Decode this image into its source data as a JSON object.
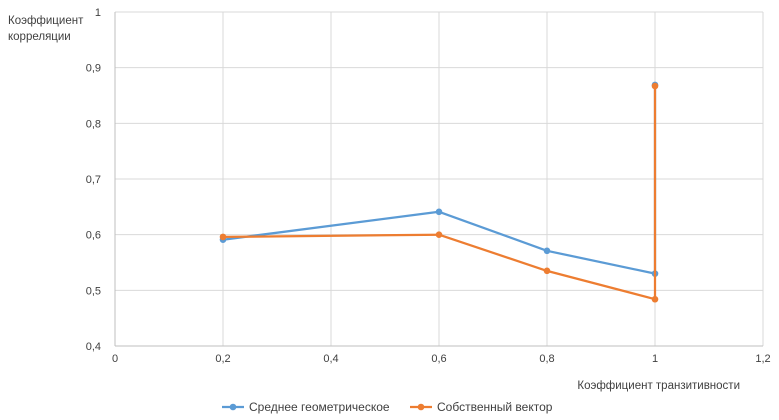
{
  "chart_data": {
    "type": "scatter",
    "xlabel": "Коэффициент транзитивности",
    "ylabel_lines": [
      "Коэффициент",
      "корреляции"
    ],
    "xlim": [
      0,
      1.2
    ],
    "ylim": [
      0.4,
      1.0
    ],
    "x_ticks": [
      0,
      0.2,
      0.4,
      0.6,
      0.8,
      1.0,
      1.2
    ],
    "x_tick_labels": [
      "0",
      "0,2",
      "0,4",
      "0,6",
      "0,8",
      "1",
      "1,2"
    ],
    "y_ticks": [
      0.4,
      0.5,
      0.6,
      0.7,
      0.8,
      0.9,
      1.0
    ],
    "y_tick_labels": [
      "0,4",
      "0,5",
      "0,6",
      "0,7",
      "0,8",
      "0,9",
      "1"
    ],
    "grid": true,
    "legend_position": "bottom",
    "series": [
      {
        "name": "Среднее геометрическое",
        "color": "#5B9BD5",
        "x": [
          0.2,
          0.6,
          0.8,
          1.0,
          1.0
        ],
        "y": [
          0.591,
          0.641,
          0.571,
          0.53,
          0.869
        ]
      },
      {
        "name": "Собственный вектор",
        "color": "#ED7D31",
        "x": [
          0.2,
          0.6,
          0.8,
          1.0,
          1.0
        ],
        "y": [
          0.596,
          0.6,
          0.535,
          0.484,
          0.867
        ]
      }
    ]
  }
}
